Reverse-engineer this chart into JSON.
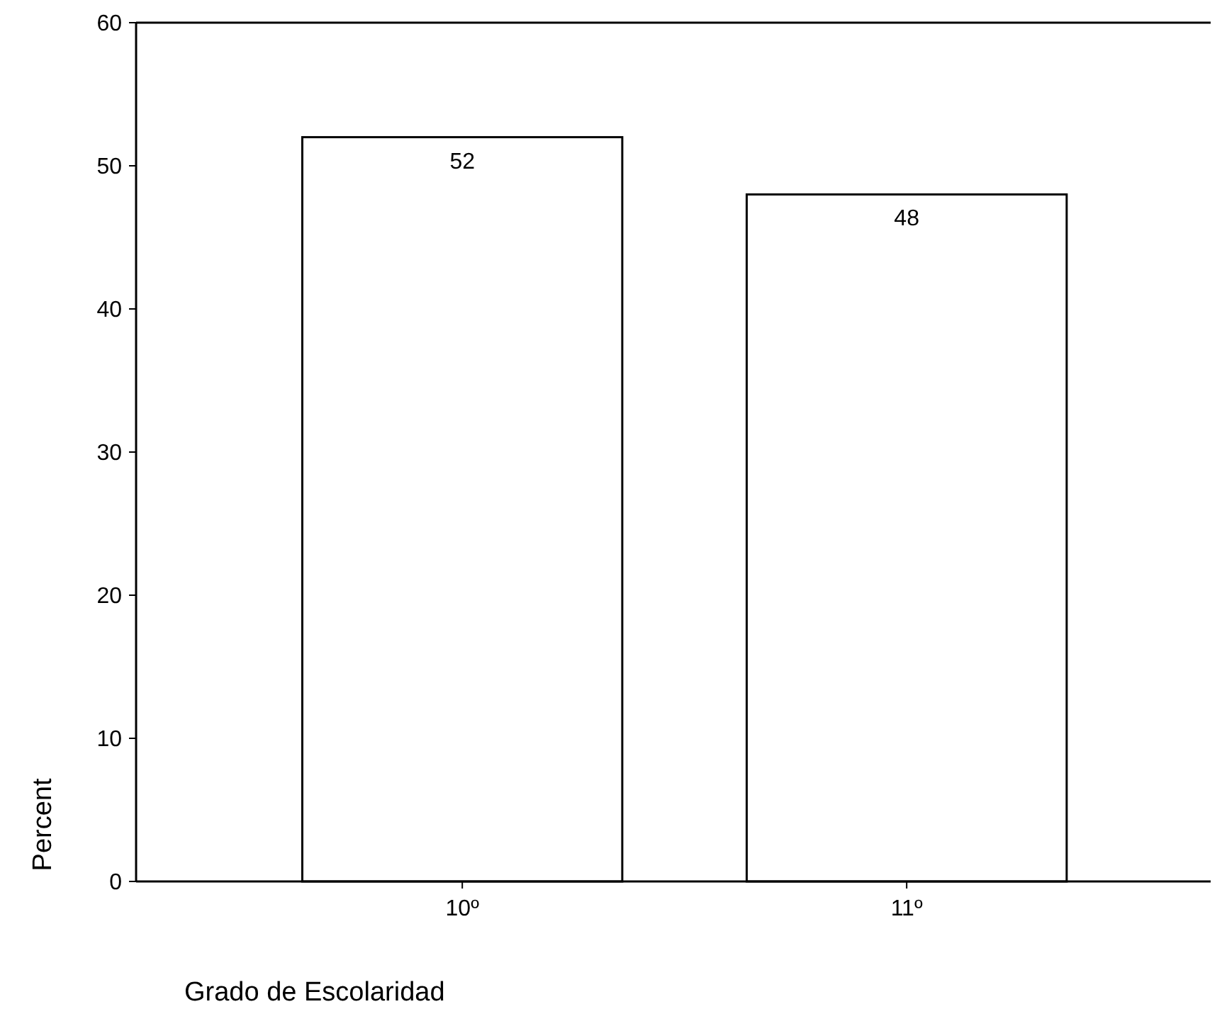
{
  "chart_data": {
    "type": "bar",
    "xlabel": "Grado de Escolaridad",
    "ylabel": "Percent",
    "categories": [
      "10º",
      "11º"
    ],
    "values": [
      52,
      48
    ],
    "color": "#ffffff",
    "data_labels": true,
    "ylim": [
      0,
      60
    ],
    "yticks": [
      0,
      10,
      20,
      30,
      40,
      50,
      60
    ],
    "grid": false
  }
}
